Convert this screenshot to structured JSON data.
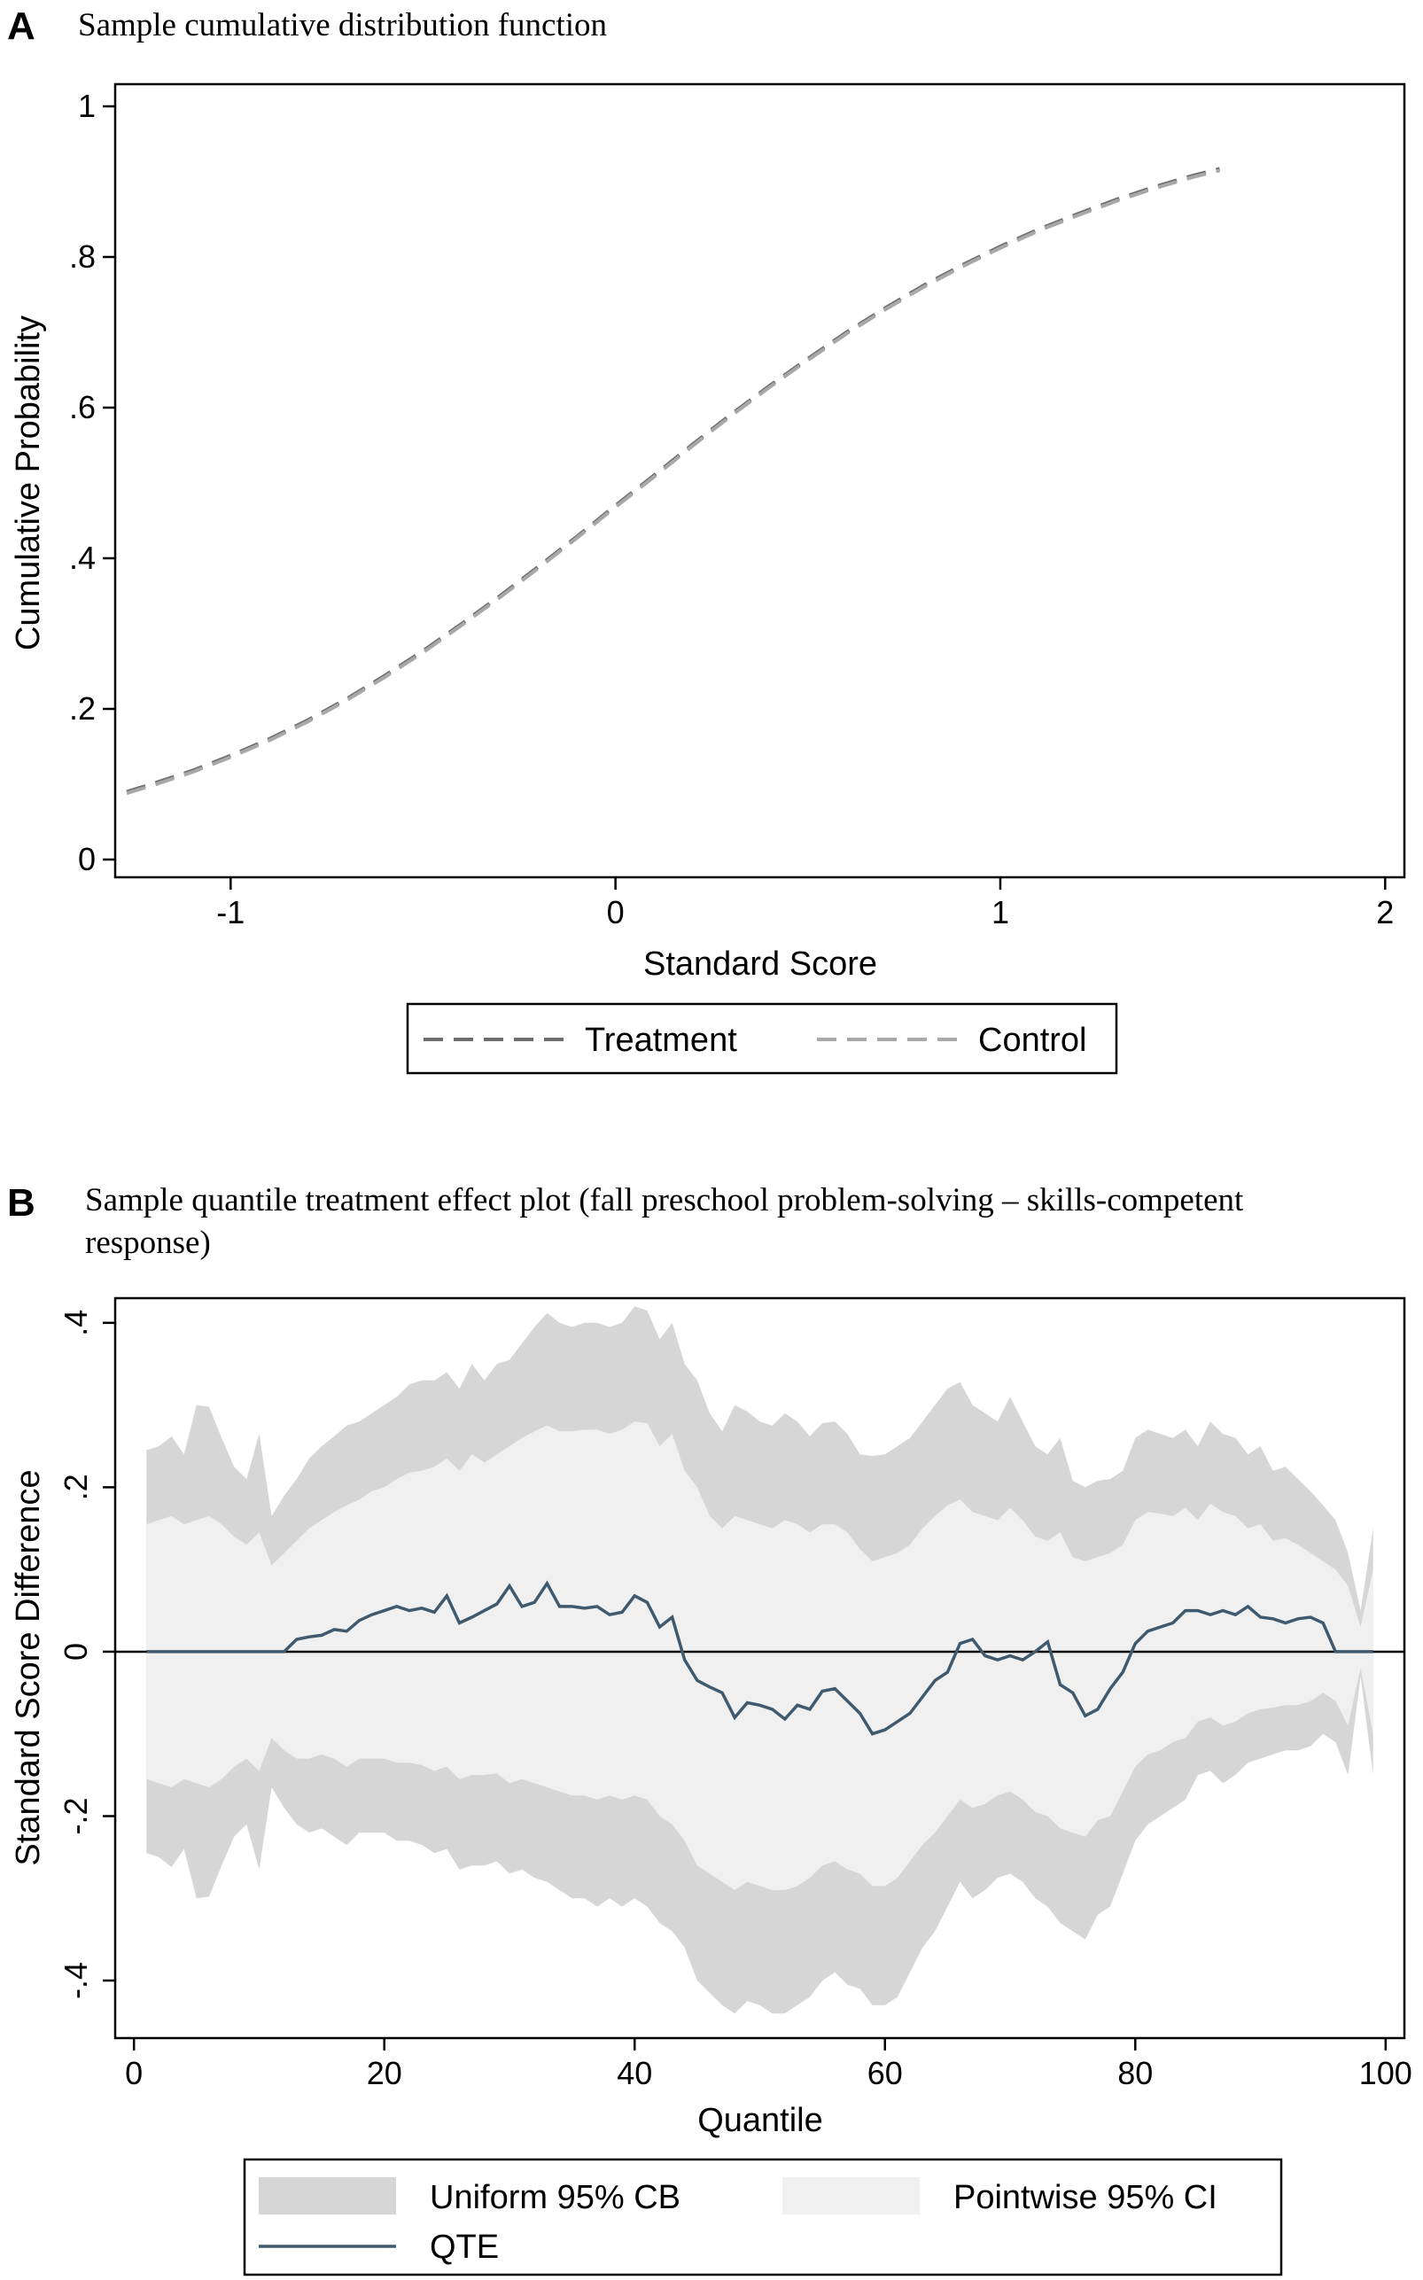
{
  "chart_data": [
    {
      "panel": "A",
      "type": "line",
      "title": "Sample cumulative distribution function",
      "xlabel": "Standard Score",
      "ylabel": "Cumulative Probability",
      "xlim": [
        -1.3,
        2.05
      ],
      "ylim": [
        0,
        1
      ],
      "xticks": [
        -1,
        0,
        1,
        2
      ],
      "xtick_labels": [
        "-1",
        "0",
        "1",
        "2"
      ],
      "yticks": [
        0,
        0.2,
        0.4,
        0.6,
        0.8,
        1
      ],
      "ytick_labels": [
        "0",
        ".2",
        ".4",
        ".6",
        ".8",
        "1"
      ],
      "series": [
        {
          "name": "Treatment",
          "color": "#6e6e6e",
          "dash": "dashed",
          "x": [
            -1.27,
            -1.2,
            -1.1,
            -1.0,
            -0.9,
            -0.8,
            -0.7,
            -0.6,
            -0.5,
            -0.4,
            -0.3,
            -0.2,
            -0.1,
            0.0,
            0.1,
            0.2,
            0.3,
            0.4,
            0.5,
            0.6,
            0.7,
            0.8,
            0.9,
            1.0,
            1.1,
            1.2,
            1.3,
            1.4,
            1.5,
            1.57
          ],
          "y": [
            0.09,
            0.101,
            0.118,
            0.138,
            0.16,
            0.185,
            0.213,
            0.244,
            0.277,
            0.313,
            0.35,
            0.389,
            0.429,
            0.47,
            0.51,
            0.551,
            0.591,
            0.629,
            0.665,
            0.7,
            0.732,
            0.762,
            0.789,
            0.814,
            0.837,
            0.857,
            0.876,
            0.893,
            0.908,
            0.917
          ]
        },
        {
          "name": "Control",
          "color": "#a8a8a8",
          "dash": "dashed",
          "x": [
            -1.27,
            -1.2,
            -1.1,
            -1.0,
            -0.9,
            -0.8,
            -0.7,
            -0.6,
            -0.5,
            -0.4,
            -0.3,
            -0.2,
            -0.1,
            0.0,
            0.1,
            0.2,
            0.3,
            0.4,
            0.5,
            0.6,
            0.7,
            0.8,
            0.9,
            1.0,
            1.1,
            1.2,
            1.3,
            1.4,
            1.5,
            1.57
          ],
          "y": [
            0.088,
            0.099,
            0.116,
            0.136,
            0.158,
            0.183,
            0.211,
            0.242,
            0.275,
            0.311,
            0.348,
            0.387,
            0.427,
            0.468,
            0.508,
            0.549,
            0.589,
            0.627,
            0.663,
            0.698,
            0.73,
            0.76,
            0.787,
            0.812,
            0.835,
            0.855,
            0.874,
            0.891,
            0.906,
            0.915
          ]
        }
      ],
      "legend": [
        {
          "label": "Treatment",
          "color": "#6e6e6e"
        },
        {
          "label": "Control",
          "color": "#a8a8a8"
        }
      ]
    },
    {
      "panel": "B",
      "type": "area",
      "title": "Sample quantile treatment effect plot (fall preschool problem-solving – skills-competent response)",
      "title_lines": [
        "Sample quantile treatment effect plot (fall preschool problem-solving – skills-competent",
        "response)"
      ],
      "xlabel": "Quantile",
      "ylabel": "Standard Score Difference",
      "xlim": [
        -1.5,
        101.5
      ],
      "ylim": [
        -0.47,
        0.43
      ],
      "xticks": [
        0,
        20,
        40,
        60,
        80,
        100
      ],
      "xtick_labels": [
        "0",
        "20",
        "40",
        "60",
        "80",
        "100"
      ],
      "yticks": [
        -0.4,
        -0.2,
        0,
        0.2,
        0.4
      ],
      "ytick_labels": [
        "-.4",
        "-.2",
        "0",
        ".2",
        ".4"
      ],
      "x": [
        1,
        2,
        3,
        4,
        5,
        6,
        7,
        8,
        9,
        10,
        11,
        12,
        13,
        14,
        15,
        16,
        17,
        18,
        19,
        20,
        21,
        22,
        23,
        24,
        25,
        26,
        27,
        28,
        29,
        30,
        31,
        32,
        33,
        34,
        35,
        36,
        37,
        38,
        39,
        40,
        41,
        42,
        43,
        44,
        45,
        46,
        47,
        48,
        49,
        50,
        51,
        52,
        53,
        54,
        55,
        56,
        57,
        58,
        59,
        60,
        61,
        62,
        63,
        64,
        65,
        66,
        67,
        68,
        69,
        70,
        71,
        72,
        73,
        74,
        75,
        76,
        77,
        78,
        79,
        80,
        81,
        82,
        83,
        84,
        85,
        86,
        87,
        88,
        89,
        90,
        91,
        92,
        93,
        94,
        95,
        96,
        97,
        98,
        99
      ],
      "qte": [
        0,
        0,
        0,
        0,
        0,
        0,
        0,
        0,
        0,
        0,
        0,
        0,
        0.015,
        0.018,
        0.02,
        0.027,
        0.025,
        0.038,
        0.045,
        0.05,
        0.055,
        0.05,
        0.053,
        0.048,
        0.068,
        0.035,
        0.042,
        0.05,
        0.058,
        0.08,
        0.055,
        0.06,
        0.083,
        0.055,
        0.055,
        0.053,
        0.055,
        0.045,
        0.048,
        0.068,
        0.06,
        0.03,
        0.042,
        -0.01,
        -0.035,
        -0.043,
        -0.05,
        -0.08,
        -0.062,
        -0.065,
        -0.07,
        -0.082,
        -0.065,
        -0.07,
        -0.048,
        -0.045,
        -0.06,
        -0.075,
        -0.1,
        -0.095,
        -0.085,
        -0.075,
        -0.055,
        -0.035,
        -0.025,
        0.01,
        0.015,
        -0.005,
        -0.01,
        -0.005,
        -0.01,
        0,
        0.012,
        -0.04,
        -0.05,
        -0.078,
        -0.07,
        -0.045,
        -0.025,
        0.01,
        0.025,
        0.03,
        0.035,
        0.05,
        0.05,
        0.045,
        0.05,
        0.045,
        0.055,
        0.042,
        0.04,
        0.035,
        0.04,
        0.042,
        0.035,
        0,
        0,
        0,
        0
      ],
      "uniform_cb_upper": [
        0.245,
        0.25,
        0.262,
        0.24,
        0.3,
        0.298,
        0.26,
        0.225,
        0.21,
        0.265,
        0.165,
        0.19,
        0.21,
        0.235,
        0.25,
        0.262,
        0.275,
        0.28,
        0.29,
        0.3,
        0.31,
        0.325,
        0.33,
        0.33,
        0.34,
        0.32,
        0.35,
        0.33,
        0.35,
        0.355,
        0.375,
        0.395,
        0.412,
        0.4,
        0.395,
        0.4,
        0.4,
        0.395,
        0.4,
        0.42,
        0.415,
        0.38,
        0.4,
        0.35,
        0.33,
        0.29,
        0.268,
        0.3,
        0.292,
        0.28,
        0.275,
        0.29,
        0.28,
        0.262,
        0.278,
        0.28,
        0.265,
        0.24,
        0.238,
        0.24,
        0.25,
        0.26,
        0.28,
        0.3,
        0.32,
        0.328,
        0.3,
        0.29,
        0.28,
        0.31,
        0.28,
        0.25,
        0.24,
        0.26,
        0.208,
        0.2,
        0.208,
        0.21,
        0.22,
        0.26,
        0.27,
        0.265,
        0.26,
        0.27,
        0.25,
        0.28,
        0.265,
        0.26,
        0.24,
        0.25,
        0.22,
        0.225,
        0.21,
        0.195,
        0.178,
        0.16,
        0.12,
        0.05,
        0.15
      ],
      "uniform_cb_lower": [
        -0.245,
        -0.25,
        -0.262,
        -0.24,
        -0.3,
        -0.298,
        -0.26,
        -0.225,
        -0.21,
        -0.265,
        -0.165,
        -0.19,
        -0.21,
        -0.22,
        -0.215,
        -0.225,
        -0.235,
        -0.22,
        -0.22,
        -0.22,
        -0.23,
        -0.23,
        -0.235,
        -0.245,
        -0.24,
        -0.265,
        -0.26,
        -0.26,
        -0.255,
        -0.27,
        -0.265,
        -0.275,
        -0.28,
        -0.29,
        -0.3,
        -0.3,
        -0.31,
        -0.3,
        -0.31,
        -0.3,
        -0.31,
        -0.33,
        -0.34,
        -0.36,
        -0.4,
        -0.415,
        -0.43,
        -0.44,
        -0.425,
        -0.43,
        -0.44,
        -0.44,
        -0.43,
        -0.42,
        -0.4,
        -0.39,
        -0.405,
        -0.41,
        -0.43,
        -0.43,
        -0.42,
        -0.39,
        -0.36,
        -0.34,
        -0.31,
        -0.28,
        -0.3,
        -0.29,
        -0.275,
        -0.27,
        -0.28,
        -0.3,
        -0.31,
        -0.33,
        -0.34,
        -0.35,
        -0.32,
        -0.31,
        -0.27,
        -0.23,
        -0.21,
        -0.2,
        -0.19,
        -0.18,
        -0.15,
        -0.145,
        -0.16,
        -0.15,
        -0.135,
        -0.13,
        -0.125,
        -0.12,
        -0.12,
        -0.115,
        -0.1,
        -0.11,
        -0.15,
        -0.03,
        -0.15
      ],
      "pointwise_ci_upper": [
        0.155,
        0.16,
        0.165,
        0.155,
        0.16,
        0.165,
        0.155,
        0.14,
        0.13,
        0.145,
        0.105,
        0.12,
        0.135,
        0.15,
        0.16,
        0.17,
        0.178,
        0.185,
        0.195,
        0.2,
        0.21,
        0.218,
        0.22,
        0.225,
        0.235,
        0.22,
        0.24,
        0.23,
        0.24,
        0.25,
        0.26,
        0.268,
        0.275,
        0.268,
        0.268,
        0.27,
        0.27,
        0.265,
        0.27,
        0.28,
        0.278,
        0.25,
        0.265,
        0.22,
        0.2,
        0.165,
        0.15,
        0.165,
        0.16,
        0.155,
        0.15,
        0.16,
        0.155,
        0.145,
        0.155,
        0.155,
        0.145,
        0.125,
        0.11,
        0.115,
        0.12,
        0.13,
        0.15,
        0.165,
        0.178,
        0.185,
        0.17,
        0.165,
        0.16,
        0.175,
        0.16,
        0.14,
        0.135,
        0.145,
        0.115,
        0.11,
        0.115,
        0.12,
        0.13,
        0.16,
        0.17,
        0.168,
        0.165,
        0.175,
        0.16,
        0.18,
        0.17,
        0.165,
        0.15,
        0.155,
        0.135,
        0.138,
        0.13,
        0.12,
        0.11,
        0.1,
        0.08,
        0.03,
        0.1
      ],
      "pointwise_ci_lower": [
        -0.155,
        -0.16,
        -0.165,
        -0.155,
        -0.16,
        -0.165,
        -0.155,
        -0.14,
        -0.13,
        -0.145,
        -0.105,
        -0.12,
        -0.13,
        -0.13,
        -0.125,
        -0.13,
        -0.14,
        -0.13,
        -0.13,
        -0.13,
        -0.135,
        -0.135,
        -0.138,
        -0.145,
        -0.14,
        -0.155,
        -0.15,
        -0.15,
        -0.148,
        -0.16,
        -0.155,
        -0.16,
        -0.165,
        -0.17,
        -0.175,
        -0.175,
        -0.18,
        -0.175,
        -0.18,
        -0.175,
        -0.18,
        -0.2,
        -0.21,
        -0.23,
        -0.26,
        -0.27,
        -0.28,
        -0.29,
        -0.28,
        -0.285,
        -0.29,
        -0.29,
        -0.285,
        -0.275,
        -0.26,
        -0.255,
        -0.265,
        -0.27,
        -0.285,
        -0.285,
        -0.275,
        -0.255,
        -0.235,
        -0.22,
        -0.2,
        -0.18,
        -0.19,
        -0.185,
        -0.175,
        -0.17,
        -0.18,
        -0.195,
        -0.2,
        -0.215,
        -0.22,
        -0.225,
        -0.205,
        -0.2,
        -0.17,
        -0.14,
        -0.125,
        -0.12,
        -0.11,
        -0.105,
        -0.085,
        -0.08,
        -0.09,
        -0.085,
        -0.075,
        -0.07,
        -0.068,
        -0.065,
        -0.065,
        -0.06,
        -0.05,
        -0.06,
        -0.09,
        -0.02,
        -0.1
      ],
      "colors": {
        "uniform_cb": "#d6d6d6",
        "pointwise_ci": "#f0f0f0",
        "qte": "#3f5a6e"
      },
      "legend": [
        {
          "label": "Uniform 95% CB",
          "color": "#d6d6d6"
        },
        {
          "label": "Pointwise 95% CI",
          "color": "#f0f0f0"
        },
        {
          "label": "QTE",
          "color": "#3f5a6e"
        }
      ]
    }
  ]
}
